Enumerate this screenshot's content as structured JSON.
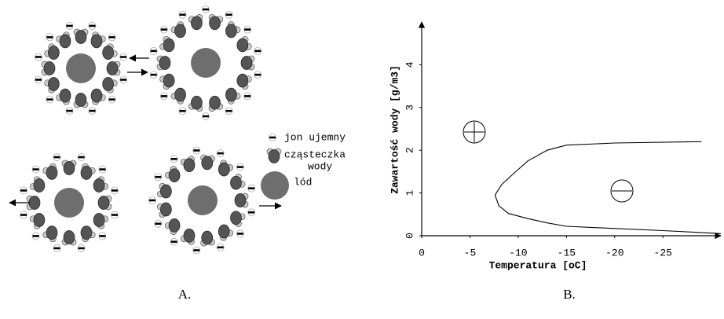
{
  "panel_a": {
    "label": "A.",
    "legend": {
      "ion": "jon ujemny",
      "water": [
        "cząsteczka",
        "wody"
      ],
      "ice": "lód"
    }
  },
  "chart_data": {
    "type": "line",
    "panel_label": "B.",
    "x_label": "Temperatura [oC]",
    "y_label": "Zawartość wody [g/m3]",
    "x": [
      -29,
      -20,
      -15,
      -13,
      -11,
      -9.5,
      -8.3,
      -7.6,
      -8,
      -9,
      -11,
      -13,
      -15,
      -20,
      -25,
      -31
    ],
    "values": [
      2.2,
      2.17,
      2.12,
      2.0,
      1.75,
      1.45,
      1.2,
      0.95,
      0.7,
      0.52,
      0.4,
      0.3,
      0.22,
      0.17,
      0.12,
      0.05
    ],
    "color": "#000000",
    "xlim": [
      0,
      -31
    ],
    "ylim": [
      0,
      5
    ],
    "xticks": [
      0,
      -5,
      -10,
      -15,
      -20,
      -25
    ],
    "yticks": [
      0,
      1,
      2,
      3,
      4
    ],
    "grid": false
  }
}
